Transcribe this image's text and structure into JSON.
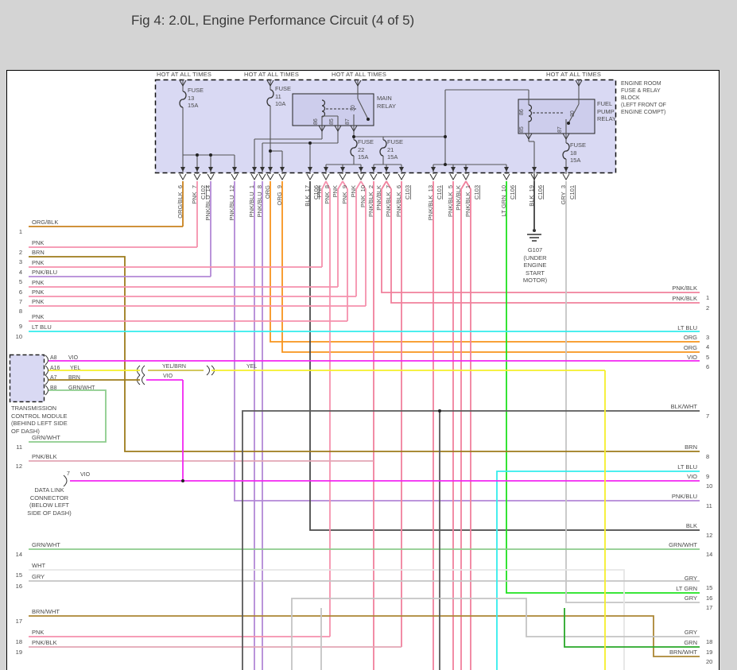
{
  "title": "Fig 4: 2.0L, Engine Performance Circuit (4 of 5)",
  "colors": {
    "PNK": "#f591ad",
    "BRN": "#9d7b1b",
    "ORG": "#f7941d",
    "ORG_BLK": "#c9821e",
    "PNK_BLU": "#b288d6",
    "LT_BLU": "#33eded",
    "VIO": "#f226f2",
    "YEL": "#f5ef2a",
    "YEL_BRN": "#cdc04a",
    "GRN_WHT": "#8ccc8c",
    "PNK_BLK": "#f0809c",
    "PNK_BLK_PALE": "#e2a6b4",
    "WHT": "#e6e6e6",
    "GRY": "#c4c4c4",
    "LT_GRN": "#1ee21e",
    "GRN": "#28a828",
    "BRN_WHT": "#ab8634",
    "BLK": "#4a4a4a",
    "BLK_WHT": "#5a5a5a",
    "box_fill": "#d9d9f3",
    "relay_fill": "#cdcdec",
    "header_bg": "#d4d4d4",
    "panel_bg": "#ffffff"
  },
  "fuse_block": {
    "hot_labels": [
      "HOT AT ALL TIMES",
      "HOT AT ALL TIMES",
      "HOT AT ALL TIMES",
      "HOT AT ALL TIMES"
    ],
    "block_label": [
      "ENGINE ROOM",
      "FUSE & RELAY",
      "BLOCK",
      "(LEFT FRONT OF",
      "ENGINE COMPT)"
    ],
    "fuses": [
      {
        "name": "FUSE",
        "num": "13",
        "amp": "15A"
      },
      {
        "name": "FUSE",
        "num": "11",
        "amp": "10A"
      },
      {
        "name": "FUSE",
        "num": "22",
        "amp": "15A"
      },
      {
        "name": "FUSE",
        "num": "21",
        "amp": "15A"
      },
      {
        "name": "FUSE",
        "num": "18",
        "amp": "15A"
      }
    ],
    "relays": [
      {
        "name1": "MAIN",
        "name2": "RELAY",
        "name3": "",
        "pins": [
          "30",
          "86",
          "85",
          "87"
        ]
      },
      {
        "name1": "FUEL",
        "name2": "PUMP",
        "name3": "RELAY",
        "pins": [
          "86",
          "85",
          "30",
          "87"
        ]
      }
    ]
  },
  "top_drops": [
    {
      "label": "ORG/BLK",
      "pin": "6",
      "conn": "",
      "color": "ORG_BLK"
    },
    {
      "label": "PNK",
      "pin": "7",
      "conn": "C102",
      "color": "PNK"
    },
    {
      "label": "PNK/BLU",
      "pin": "14",
      "conn": "",
      "color": "PNK_BLU"
    },
    {
      "label": "PNK/BLU",
      "pin": "12",
      "conn": "",
      "color": "PNK_BLU"
    },
    {
      "label": "PNK/BLU",
      "pin": "1",
      "conn": "",
      "color": "PNK_BLU"
    },
    {
      "label": "PNK/BLU",
      "pin": "8",
      "conn": "",
      "color": "PNK_BLU"
    },
    {
      "label": "ORG",
      "pin": "",
      "conn": "",
      "color": "ORG"
    },
    {
      "label": "ORG",
      "pin": "9",
      "conn": "",
      "color": "ORG"
    },
    {
      "label": "BLK",
      "pin": "17",
      "conn": "C106",
      "color": "BLK"
    },
    {
      "label": "PNK",
      "pin": "",
      "conn": "",
      "color": "PNK"
    },
    {
      "label": "PNK",
      "pin": "8",
      "conn": "",
      "color": "PNK"
    },
    {
      "label": "PNK",
      "pin": "",
      "conn": "",
      "color": "PNK"
    },
    {
      "label": "PNK",
      "pin": "9",
      "conn": "",
      "color": "PNK"
    },
    {
      "label": "PNK",
      "pin": "",
      "conn": "",
      "color": "PNK"
    },
    {
      "label": "PNK",
      "pin": "10",
      "conn": "",
      "color": "PNK"
    },
    {
      "label": "PNK/BLK",
      "pin": "2",
      "conn": "",
      "color": "PNK_BLK"
    },
    {
      "label": "PNK/BLK",
      "pin": "",
      "conn": "",
      "color": "PNK_BLK"
    },
    {
      "label": "PNK/BLK",
      "pin": "7",
      "conn": "",
      "color": "PNK_BLK"
    },
    {
      "label": "PNK/BLK",
      "pin": "6",
      "conn": "C103",
      "color": "PNK_BLK"
    },
    {
      "label": "PNK/BLK",
      "pin": "13",
      "conn": "C101",
      "color": "PNK_BLK"
    },
    {
      "label": "PNK/BLK",
      "pin": "5",
      "conn": "",
      "color": "PNK_BLK"
    },
    {
      "label": "PNK/BLK",
      "pin": "",
      "conn": "",
      "color": "PNK_BLK"
    },
    {
      "label": "PNK/BLK",
      "pin": "1",
      "conn": "C103",
      "color": "PNK_BLK"
    },
    {
      "label": "LT GRN",
      "pin": "10",
      "conn": "C106",
      "color": "LT_GRN"
    },
    {
      "label": "BLK",
      "pin": "19",
      "conn": "C106",
      "color": "BLK"
    },
    {
      "label": "GRY",
      "pin": "3",
      "conn": "C101",
      "color": "GRY"
    }
  ],
  "left_rows": [
    {
      "num": "1",
      "label": "ORG/BLK",
      "color": "ORG_BLK"
    },
    {
      "num": "2",
      "label": "PNK",
      "color": "PNK"
    },
    {
      "num": "3",
      "label": "BRN",
      "color": "BRN"
    },
    {
      "num": "4",
      "label": "PNK",
      "color": "PNK"
    },
    {
      "num": "5",
      "label": "PNK/BLU",
      "color": "PNK_BLU"
    },
    {
      "num": "6",
      "label": "PNK",
      "color": "PNK"
    },
    {
      "num": "7",
      "label": "PNK",
      "color": "PNK"
    },
    {
      "num": "8",
      "label": "PNK",
      "color": "PNK"
    },
    {
      "num": "9",
      "label": "PNK",
      "color": "PNK"
    },
    {
      "num": "10",
      "label": "LT BLU",
      "color": "LT_BLU"
    },
    {
      "num": "11",
      "label": "GRN/WHT",
      "color": "GRN_WHT"
    },
    {
      "num": "12",
      "label": "PNK/BLK",
      "color": "PNK_BLK_PALE"
    },
    {
      "num": "14",
      "label": "GRN/WHT",
      "color": "GRN_WHT"
    },
    {
      "num": "15",
      "label": "WHT",
      "color": "WHT"
    },
    {
      "num": "16",
      "label": "GRY",
      "color": "GRY"
    },
    {
      "num": "17",
      "label": "BRN/WHT",
      "color": "BRN_WHT"
    },
    {
      "num": "18",
      "label": "PNK",
      "color": "PNK"
    },
    {
      "num": "19",
      "label": "PNK/BLK",
      "color": "PNK_BLK_PALE"
    }
  ],
  "right_rows": [
    {
      "num": "1",
      "label": "PNK/BLK",
      "color": "PNK_BLK_PALE"
    },
    {
      "num": "2",
      "label": "PNK/BLK",
      "color": "PNK_BLK_PALE"
    },
    {
      "num": "3",
      "label": "LT BLU",
      "color": "LT_BLU"
    },
    {
      "num": "4",
      "label": "ORG",
      "color": "ORG"
    },
    {
      "num": "5",
      "label": "ORG",
      "color": "ORG"
    },
    {
      "num": "6",
      "label": "VIO",
      "color": "VIO"
    },
    {
      "num": "7",
      "label": "BLK/WHT",
      "color": "BLK_WHT"
    },
    {
      "num": "8",
      "label": "BRN",
      "color": "BRN"
    },
    {
      "num": "9",
      "label": "LT BLU",
      "color": "LT_BLU"
    },
    {
      "num": "10",
      "label": "VIO",
      "color": "VIO"
    },
    {
      "num": "11",
      "label": "PNK/BLU",
      "color": "PNK_BLU"
    },
    {
      "num": "12",
      "label": "BLK",
      "color": "BLK"
    },
    {
      "num": "14",
      "label": "GRN/WHT",
      "color": "GRN_WHT"
    },
    {
      "num": "15",
      "label": "GRY",
      "color": "GRY"
    },
    {
      "num": "16",
      "label": "LT GRN",
      "color": "LT_GRN"
    },
    {
      "num": "17",
      "label": "GRY",
      "color": "GRY"
    },
    {
      "num": "18",
      "label": "GRY",
      "color": "GRY"
    },
    {
      "num": "19",
      "label": "GRN",
      "color": "GRN"
    },
    {
      "num": "20",
      "label": "BRN/WHT",
      "color": "BRN_WHT"
    }
  ],
  "tcm": {
    "pins": [
      {
        "id": "A8",
        "wire": "VIO"
      },
      {
        "id": "A16",
        "wire": "YEL"
      },
      {
        "id": "A7",
        "wire": "BRN"
      },
      {
        "id": "B8",
        "wire": "GRN/WHT"
      }
    ],
    "name": [
      "TRANSMISSION",
      "CONTROL MODULE",
      "(BEHIND LEFT SIDE",
      "OF DASH)"
    ]
  },
  "inline_labels": {
    "yel_brn": "YEL/BRN",
    "yel": "YEL",
    "vio": "VIO"
  },
  "dlc": {
    "pin": "7",
    "wire": "VIO",
    "name": [
      "DATA LINK",
      "CONNECTOR",
      "(BELOW LEFT",
      "SIDE OF DASH)"
    ]
  },
  "ground": {
    "name": "G107",
    "desc": [
      "(UNDER",
      "ENGINE",
      "START",
      "MOTOR)"
    ]
  }
}
